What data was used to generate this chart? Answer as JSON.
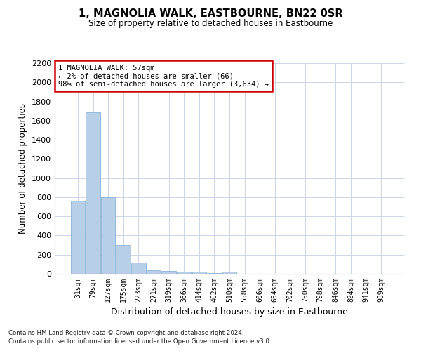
{
  "title": "1, MAGNOLIA WALK, EASTBOURNE, BN22 0SR",
  "subtitle": "Size of property relative to detached houses in Eastbourne",
  "xlabel": "Distribution of detached houses by size in Eastbourne",
  "ylabel": "Number of detached properties",
  "bar_color": "#b8cfe8",
  "bar_edge_color": "#7aaad0",
  "categories": [
    "31sqm",
    "79sqm",
    "127sqm",
    "175sqm",
    "223sqm",
    "271sqm",
    "319sqm",
    "366sqm",
    "414sqm",
    "462sqm",
    "510sqm",
    "558sqm",
    "606sqm",
    "654sqm",
    "702sqm",
    "750sqm",
    "798sqm",
    "846sqm",
    "894sqm",
    "941sqm",
    "989sqm"
  ],
  "values": [
    760,
    1690,
    800,
    300,
    115,
    40,
    30,
    25,
    20,
    10,
    25,
    0,
    0,
    0,
    0,
    0,
    0,
    0,
    0,
    0,
    0
  ],
  "ylim": [
    0,
    2200
  ],
  "yticks": [
    0,
    200,
    400,
    600,
    800,
    1000,
    1200,
    1400,
    1600,
    1800,
    2000,
    2200
  ],
  "annotation_box_text": "1 MAGNOLIA WALK: 57sqm\n← 2% of detached houses are smaller (66)\n98% of semi-detached houses are larger (3,634) →",
  "annotation_box_color": "#cc0000",
  "footnote1": "Contains HM Land Registry data © Crown copyright and database right 2024.",
  "footnote2": "Contains public sector information licensed under the Open Government Licence v3.0.",
  "bg_color": "#ffffff",
  "grid_color": "#ccd6e8"
}
